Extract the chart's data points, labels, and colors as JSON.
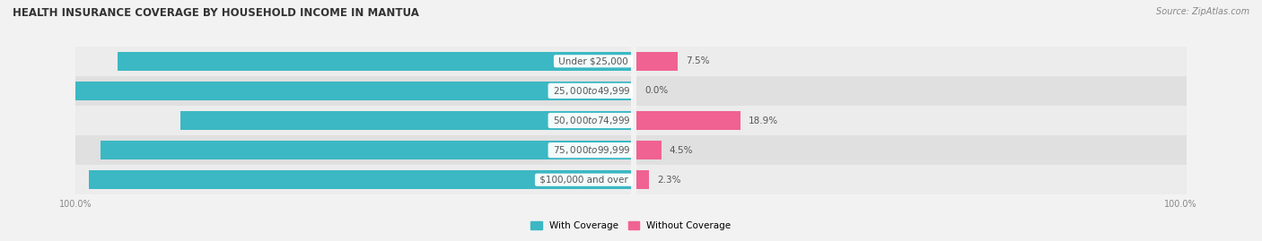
{
  "title": "HEALTH INSURANCE COVERAGE BY HOUSEHOLD INCOME IN MANTUA",
  "source": "Source: ZipAtlas.com",
  "categories": [
    "Under $25,000",
    "$25,000 to $49,999",
    "$50,000 to $74,999",
    "$75,000 to $99,999",
    "$100,000 and over"
  ],
  "with_coverage": [
    92.5,
    100.0,
    81.2,
    95.5,
    97.7
  ],
  "without_coverage": [
    7.5,
    0.0,
    18.9,
    4.5,
    2.3
  ],
  "color_with": "#3bb8c3",
  "color_with_light": "#7fd1d8",
  "color_without": "#f06292",
  "color_without_light": "#f8bbd0",
  "row_bg": [
    "#e8e8e8",
    "#d8d8d8",
    "#e8e8e8",
    "#d8d8d8",
    "#e8e8e8"
  ],
  "title_fontsize": 8.5,
  "label_fontsize": 7.5,
  "pct_fontsize": 7.5,
  "cat_fontsize": 7.5,
  "source_fontsize": 7,
  "tick_fontsize": 7,
  "legend_labels": [
    "With Coverage",
    "Without Coverage"
  ],
  "bg_color": "#f2f2f2"
}
